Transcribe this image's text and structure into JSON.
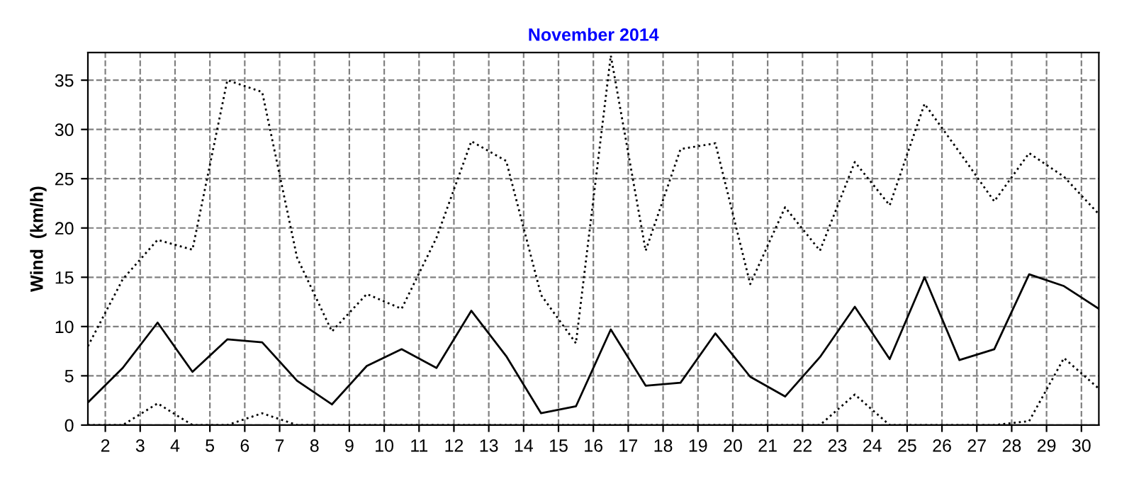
{
  "chart_data": {
    "type": "line",
    "title": "November 2014",
    "ylabel": "Wind  (km/h)",
    "x": [
      1.5,
      2.5,
      3.5,
      4.5,
      5.5,
      6.5,
      7.5,
      8.5,
      9.5,
      10.5,
      11.5,
      12.5,
      13.5,
      14.5,
      15.5,
      16.5,
      17.5,
      18.5,
      19.5,
      20.5,
      21.5,
      22.5,
      23.5,
      24.5,
      25.5,
      26.5,
      27.5,
      28.5,
      29.5,
      30.5
    ],
    "series": [
      {
        "color": "#000000",
        "line_style": "dotted",
        "values": [
          8,
          14.8,
          18.8,
          17.8,
          35,
          33.8,
          17,
          9.5,
          13.3,
          11.8,
          19,
          28.8,
          26.8,
          13.2,
          8.3,
          37.5,
          17.7,
          28,
          28.6,
          14.3,
          22.1,
          17.7,
          26.7,
          22.3,
          32.6,
          27.7,
          22.7,
          27.6,
          25.2,
          21.4
        ]
      },
      {
        "color": "#000000",
        "line_style": "solid",
        "values": [
          2.3,
          5.8,
          10.4,
          5.4,
          8.7,
          8.4,
          4.5,
          2.1,
          6,
          7.7,
          5.8,
          11.6,
          7,
          1.2,
          1.9,
          9.7,
          4,
          4.3,
          9.3,
          4.9,
          2.9,
          6.9,
          12,
          6.7,
          15,
          6.6,
          7.7,
          15.3,
          14.1,
          11.8
        ]
      },
      {
        "color": "#000000",
        "line_style": "dotted",
        "values": [
          0,
          0,
          2.2,
          0,
          0,
          1.2,
          0,
          0,
          0,
          0,
          0,
          0,
          0,
          0,
          0,
          0,
          0,
          0,
          0,
          0,
          0,
          0,
          3.1,
          0,
          0,
          0,
          0,
          0.4,
          6.8,
          3.7
        ]
      }
    ],
    "xlim": [
      1.5,
      30.5
    ],
    "xticks": [
      2,
      3,
      4,
      5,
      6,
      7,
      8,
      9,
      10,
      11,
      12,
      13,
      14,
      15,
      16,
      17,
      18,
      19,
      20,
      21,
      22,
      23,
      24,
      25,
      26,
      27,
      28,
      29,
      30
    ],
    "ylim": [
      0,
      37.8
    ],
    "yticks": [
      0,
      5,
      10,
      15,
      20,
      25,
      30,
      35
    ],
    "grid": true,
    "marker": "none",
    "legend": false
  }
}
